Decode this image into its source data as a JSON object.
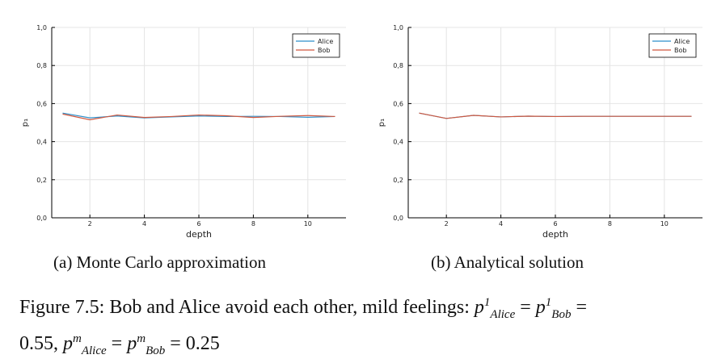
{
  "colors": {
    "alice": "#2f8fc9",
    "bob": "#d0583f",
    "grid": "#e4e4e4",
    "axis": "#000000"
  },
  "chart_data": [
    {
      "type": "line",
      "xlabel": "depth",
      "ylabel": "p₁",
      "xlim": [
        0.6,
        11.4
      ],
      "ylim": [
        0,
        1
      ],
      "xticks": [
        2,
        4,
        6,
        8,
        10
      ],
      "yticks": [
        0,
        0.2,
        0.4,
        0.6,
        0.8,
        1
      ],
      "ytick_labels": [
        "0,0",
        "0,2",
        "0,4",
        "0,6",
        "0,8",
        "1,0"
      ],
      "grid": true,
      "legend": "top-right",
      "series": [
        {
          "name": "Alice",
          "color": "alice",
          "x": [
            1,
            2,
            3,
            4,
            5,
            6,
            7,
            8,
            9,
            10,
            11
          ],
          "y": [
            0.55,
            0.525,
            0.535,
            0.525,
            0.53,
            0.535,
            0.532,
            0.533,
            0.532,
            0.528,
            0.532
          ]
        },
        {
          "name": "Bob",
          "color": "bob",
          "x": [
            1,
            2,
            3,
            4,
            5,
            6,
            7,
            8,
            9,
            10,
            11
          ],
          "y": [
            0.545,
            0.515,
            0.54,
            0.527,
            0.532,
            0.54,
            0.536,
            0.527,
            0.533,
            0.537,
            0.532
          ]
        }
      ],
      "caption": "(a) Monte Carlo approximation"
    },
    {
      "type": "line",
      "xlabel": "depth",
      "ylabel": "p₁",
      "xlim": [
        0.6,
        11.4
      ],
      "ylim": [
        0,
        1
      ],
      "xticks": [
        2,
        4,
        6,
        8,
        10
      ],
      "yticks": [
        0,
        0.2,
        0.4,
        0.6,
        0.8,
        1
      ],
      "ytick_labels": [
        "0,0",
        "0,2",
        "0,4",
        "0,6",
        "0,8",
        "1,0"
      ],
      "grid": true,
      "legend": "top-right",
      "series": [
        {
          "name": "Alice",
          "color": "alice",
          "x": [
            1,
            2,
            3,
            4,
            5,
            6,
            7,
            8,
            9,
            10,
            11
          ],
          "y": [
            0.55,
            0.522,
            0.538,
            0.53,
            0.534,
            0.532,
            0.533,
            0.533,
            0.533,
            0.533,
            0.533
          ]
        },
        {
          "name": "Bob",
          "color": "bob",
          "x": [
            1,
            2,
            3,
            4,
            5,
            6,
            7,
            8,
            9,
            10,
            11
          ],
          "y": [
            0.55,
            0.522,
            0.538,
            0.53,
            0.534,
            0.532,
            0.533,
            0.533,
            0.533,
            0.533,
            0.533
          ]
        }
      ],
      "caption": "(b) Analytical solution"
    }
  ],
  "figure_caption": {
    "prefix": "Figure 7.5: Bob and Alice avoid each other, mild feelings:",
    "p": "p",
    "sup_one": "1",
    "sup_m": "m",
    "sub_alice": "Alice",
    "sub_bob": "Bob",
    "eq": "=",
    "val_1": "0.55",
    "comma": ",",
    "val_2": "0.25"
  }
}
